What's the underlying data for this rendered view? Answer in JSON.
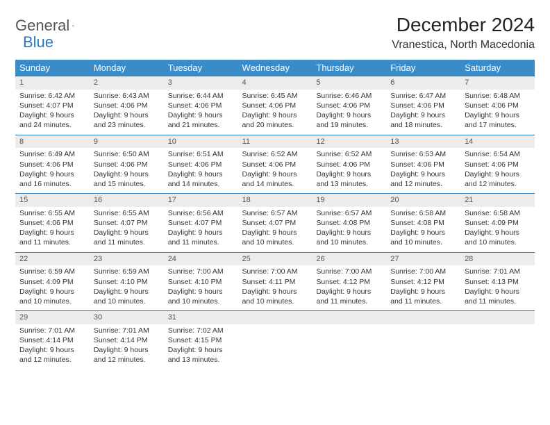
{
  "logo": {
    "text1": "General",
    "text2": "Blue"
  },
  "title": "December 2024",
  "location": "Vranestica, North Macedonia",
  "colors": {
    "header_bg": "#3a8cc9",
    "header_text": "#ffffff",
    "daynum_bg": "#ececec",
    "daynum_border": "#2b7bbf",
    "body_text": "#333333",
    "logo_blue": "#2b7bbf"
  },
  "weekdays": [
    "Sunday",
    "Monday",
    "Tuesday",
    "Wednesday",
    "Thursday",
    "Friday",
    "Saturday"
  ],
  "weeks": [
    [
      {
        "n": "1",
        "sr": "Sunrise: 6:42 AM",
        "ss": "Sunset: 4:07 PM",
        "dl": "Daylight: 9 hours and 24 minutes."
      },
      {
        "n": "2",
        "sr": "Sunrise: 6:43 AM",
        "ss": "Sunset: 4:06 PM",
        "dl": "Daylight: 9 hours and 23 minutes."
      },
      {
        "n": "3",
        "sr": "Sunrise: 6:44 AM",
        "ss": "Sunset: 4:06 PM",
        "dl": "Daylight: 9 hours and 21 minutes."
      },
      {
        "n": "4",
        "sr": "Sunrise: 6:45 AM",
        "ss": "Sunset: 4:06 PM",
        "dl": "Daylight: 9 hours and 20 minutes."
      },
      {
        "n": "5",
        "sr": "Sunrise: 6:46 AM",
        "ss": "Sunset: 4:06 PM",
        "dl": "Daylight: 9 hours and 19 minutes."
      },
      {
        "n": "6",
        "sr": "Sunrise: 6:47 AM",
        "ss": "Sunset: 4:06 PM",
        "dl": "Daylight: 9 hours and 18 minutes."
      },
      {
        "n": "7",
        "sr": "Sunrise: 6:48 AM",
        "ss": "Sunset: 4:06 PM",
        "dl": "Daylight: 9 hours and 17 minutes."
      }
    ],
    [
      {
        "n": "8",
        "sr": "Sunrise: 6:49 AM",
        "ss": "Sunset: 4:06 PM",
        "dl": "Daylight: 9 hours and 16 minutes."
      },
      {
        "n": "9",
        "sr": "Sunrise: 6:50 AM",
        "ss": "Sunset: 4:06 PM",
        "dl": "Daylight: 9 hours and 15 minutes."
      },
      {
        "n": "10",
        "sr": "Sunrise: 6:51 AM",
        "ss": "Sunset: 4:06 PM",
        "dl": "Daylight: 9 hours and 14 minutes."
      },
      {
        "n": "11",
        "sr": "Sunrise: 6:52 AM",
        "ss": "Sunset: 4:06 PM",
        "dl": "Daylight: 9 hours and 14 minutes."
      },
      {
        "n": "12",
        "sr": "Sunrise: 6:52 AM",
        "ss": "Sunset: 4:06 PM",
        "dl": "Daylight: 9 hours and 13 minutes."
      },
      {
        "n": "13",
        "sr": "Sunrise: 6:53 AM",
        "ss": "Sunset: 4:06 PM",
        "dl": "Daylight: 9 hours and 12 minutes."
      },
      {
        "n": "14",
        "sr": "Sunrise: 6:54 AM",
        "ss": "Sunset: 4:06 PM",
        "dl": "Daylight: 9 hours and 12 minutes."
      }
    ],
    [
      {
        "n": "15",
        "sr": "Sunrise: 6:55 AM",
        "ss": "Sunset: 4:06 PM",
        "dl": "Daylight: 9 hours and 11 minutes."
      },
      {
        "n": "16",
        "sr": "Sunrise: 6:55 AM",
        "ss": "Sunset: 4:07 PM",
        "dl": "Daylight: 9 hours and 11 minutes."
      },
      {
        "n": "17",
        "sr": "Sunrise: 6:56 AM",
        "ss": "Sunset: 4:07 PM",
        "dl": "Daylight: 9 hours and 11 minutes."
      },
      {
        "n": "18",
        "sr": "Sunrise: 6:57 AM",
        "ss": "Sunset: 4:07 PM",
        "dl": "Daylight: 9 hours and 10 minutes."
      },
      {
        "n": "19",
        "sr": "Sunrise: 6:57 AM",
        "ss": "Sunset: 4:08 PM",
        "dl": "Daylight: 9 hours and 10 minutes."
      },
      {
        "n": "20",
        "sr": "Sunrise: 6:58 AM",
        "ss": "Sunset: 4:08 PM",
        "dl": "Daylight: 9 hours and 10 minutes."
      },
      {
        "n": "21",
        "sr": "Sunrise: 6:58 AM",
        "ss": "Sunset: 4:09 PM",
        "dl": "Daylight: 9 hours and 10 minutes."
      }
    ],
    [
      {
        "n": "22",
        "sr": "Sunrise: 6:59 AM",
        "ss": "Sunset: 4:09 PM",
        "dl": "Daylight: 9 hours and 10 minutes."
      },
      {
        "n": "23",
        "sr": "Sunrise: 6:59 AM",
        "ss": "Sunset: 4:10 PM",
        "dl": "Daylight: 9 hours and 10 minutes."
      },
      {
        "n": "24",
        "sr": "Sunrise: 7:00 AM",
        "ss": "Sunset: 4:10 PM",
        "dl": "Daylight: 9 hours and 10 minutes."
      },
      {
        "n": "25",
        "sr": "Sunrise: 7:00 AM",
        "ss": "Sunset: 4:11 PM",
        "dl": "Daylight: 9 hours and 10 minutes."
      },
      {
        "n": "26",
        "sr": "Sunrise: 7:00 AM",
        "ss": "Sunset: 4:12 PM",
        "dl": "Daylight: 9 hours and 11 minutes."
      },
      {
        "n": "27",
        "sr": "Sunrise: 7:00 AM",
        "ss": "Sunset: 4:12 PM",
        "dl": "Daylight: 9 hours and 11 minutes."
      },
      {
        "n": "28",
        "sr": "Sunrise: 7:01 AM",
        "ss": "Sunset: 4:13 PM",
        "dl": "Daylight: 9 hours and 11 minutes."
      }
    ],
    [
      {
        "n": "29",
        "sr": "Sunrise: 7:01 AM",
        "ss": "Sunset: 4:14 PM",
        "dl": "Daylight: 9 hours and 12 minutes."
      },
      {
        "n": "30",
        "sr": "Sunrise: 7:01 AM",
        "ss": "Sunset: 4:14 PM",
        "dl": "Daylight: 9 hours and 12 minutes."
      },
      {
        "n": "31",
        "sr": "Sunrise: 7:02 AM",
        "ss": "Sunset: 4:15 PM",
        "dl": "Daylight: 9 hours and 13 minutes."
      },
      null,
      null,
      null,
      null
    ]
  ]
}
